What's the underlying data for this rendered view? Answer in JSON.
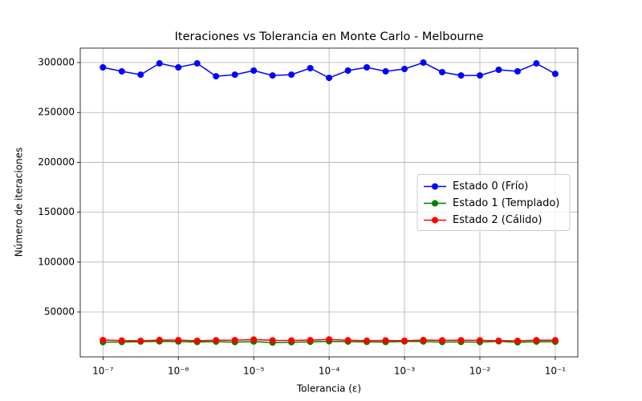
{
  "chart_data": {
    "type": "line",
    "title": "Iteraciones vs Tolerancia en Monte Carlo - Melbourne",
    "xlabel": "Tolerancia (ε)",
    "ylabel": "Número de iteraciones",
    "x": [
      1e-07,
      1.778e-07,
      3.162e-07,
      5.623e-07,
      1e-06,
      1.778e-06,
      3.162e-06,
      5.623e-06,
      1e-05,
      1.778e-05,
      3.162e-05,
      5.623e-05,
      0.0001,
      0.0001778,
      0.0003162,
      0.0005623,
      0.001,
      0.001778,
      0.003162,
      0.005623,
      0.01,
      0.01778,
      0.03162,
      0.05623,
      0.1
    ],
    "xscale": "log",
    "xlim": [
      5e-08,
      0.199
    ],
    "xticks": [
      {
        "value": 1e-07,
        "label": "10⁻⁷"
      },
      {
        "value": 1e-06,
        "label": "10⁻⁶"
      },
      {
        "value": 1e-05,
        "label": "10⁻⁵"
      },
      {
        "value": 0.0001,
        "label": "10⁻⁴"
      },
      {
        "value": 0.001,
        "label": "10⁻³"
      },
      {
        "value": 0.01,
        "label": "10⁻²"
      },
      {
        "value": 0.1,
        "label": "10⁻¹"
      }
    ],
    "ylim": [
      5000,
      314500
    ],
    "yticks": [
      50000,
      100000,
      150000,
      200000,
      250000,
      300000
    ],
    "grid": true,
    "legend": "center right",
    "series": [
      {
        "name": "Estado 0 (Frío)",
        "color": "#0000ff",
        "values": [
          295200,
          291200,
          287900,
          299200,
          295200,
          299200,
          286300,
          287900,
          292000,
          287100,
          287900,
          294400,
          284700,
          292000,
          295200,
          291200,
          293600,
          300000,
          290400,
          287100,
          287100,
          292800,
          291200,
          299200,
          288700
        ]
      },
      {
        "name": "Estado 1 (Templado)",
        "color": "#008000",
        "values": [
          19800,
          19900,
          20300,
          20500,
          20400,
          19900,
          20300,
          19800,
          20400,
          19300,
          19700,
          20100,
          20600,
          20300,
          20000,
          19900,
          20500,
          20400,
          19900,
          20000,
          19800,
          20600,
          19600,
          20300,
          20200
        ]
      },
      {
        "name": "Estado 2 (Cálido)",
        "color": "#ff0000",
        "values": [
          21900,
          21400,
          21100,
          21900,
          21800,
          21200,
          21700,
          21800,
          22400,
          21600,
          21500,
          21800,
          22500,
          21700,
          21300,
          21500,
          21200,
          21900,
          21600,
          21700,
          21600,
          21200,
          21100,
          21800,
          21700
        ]
      }
    ]
  }
}
